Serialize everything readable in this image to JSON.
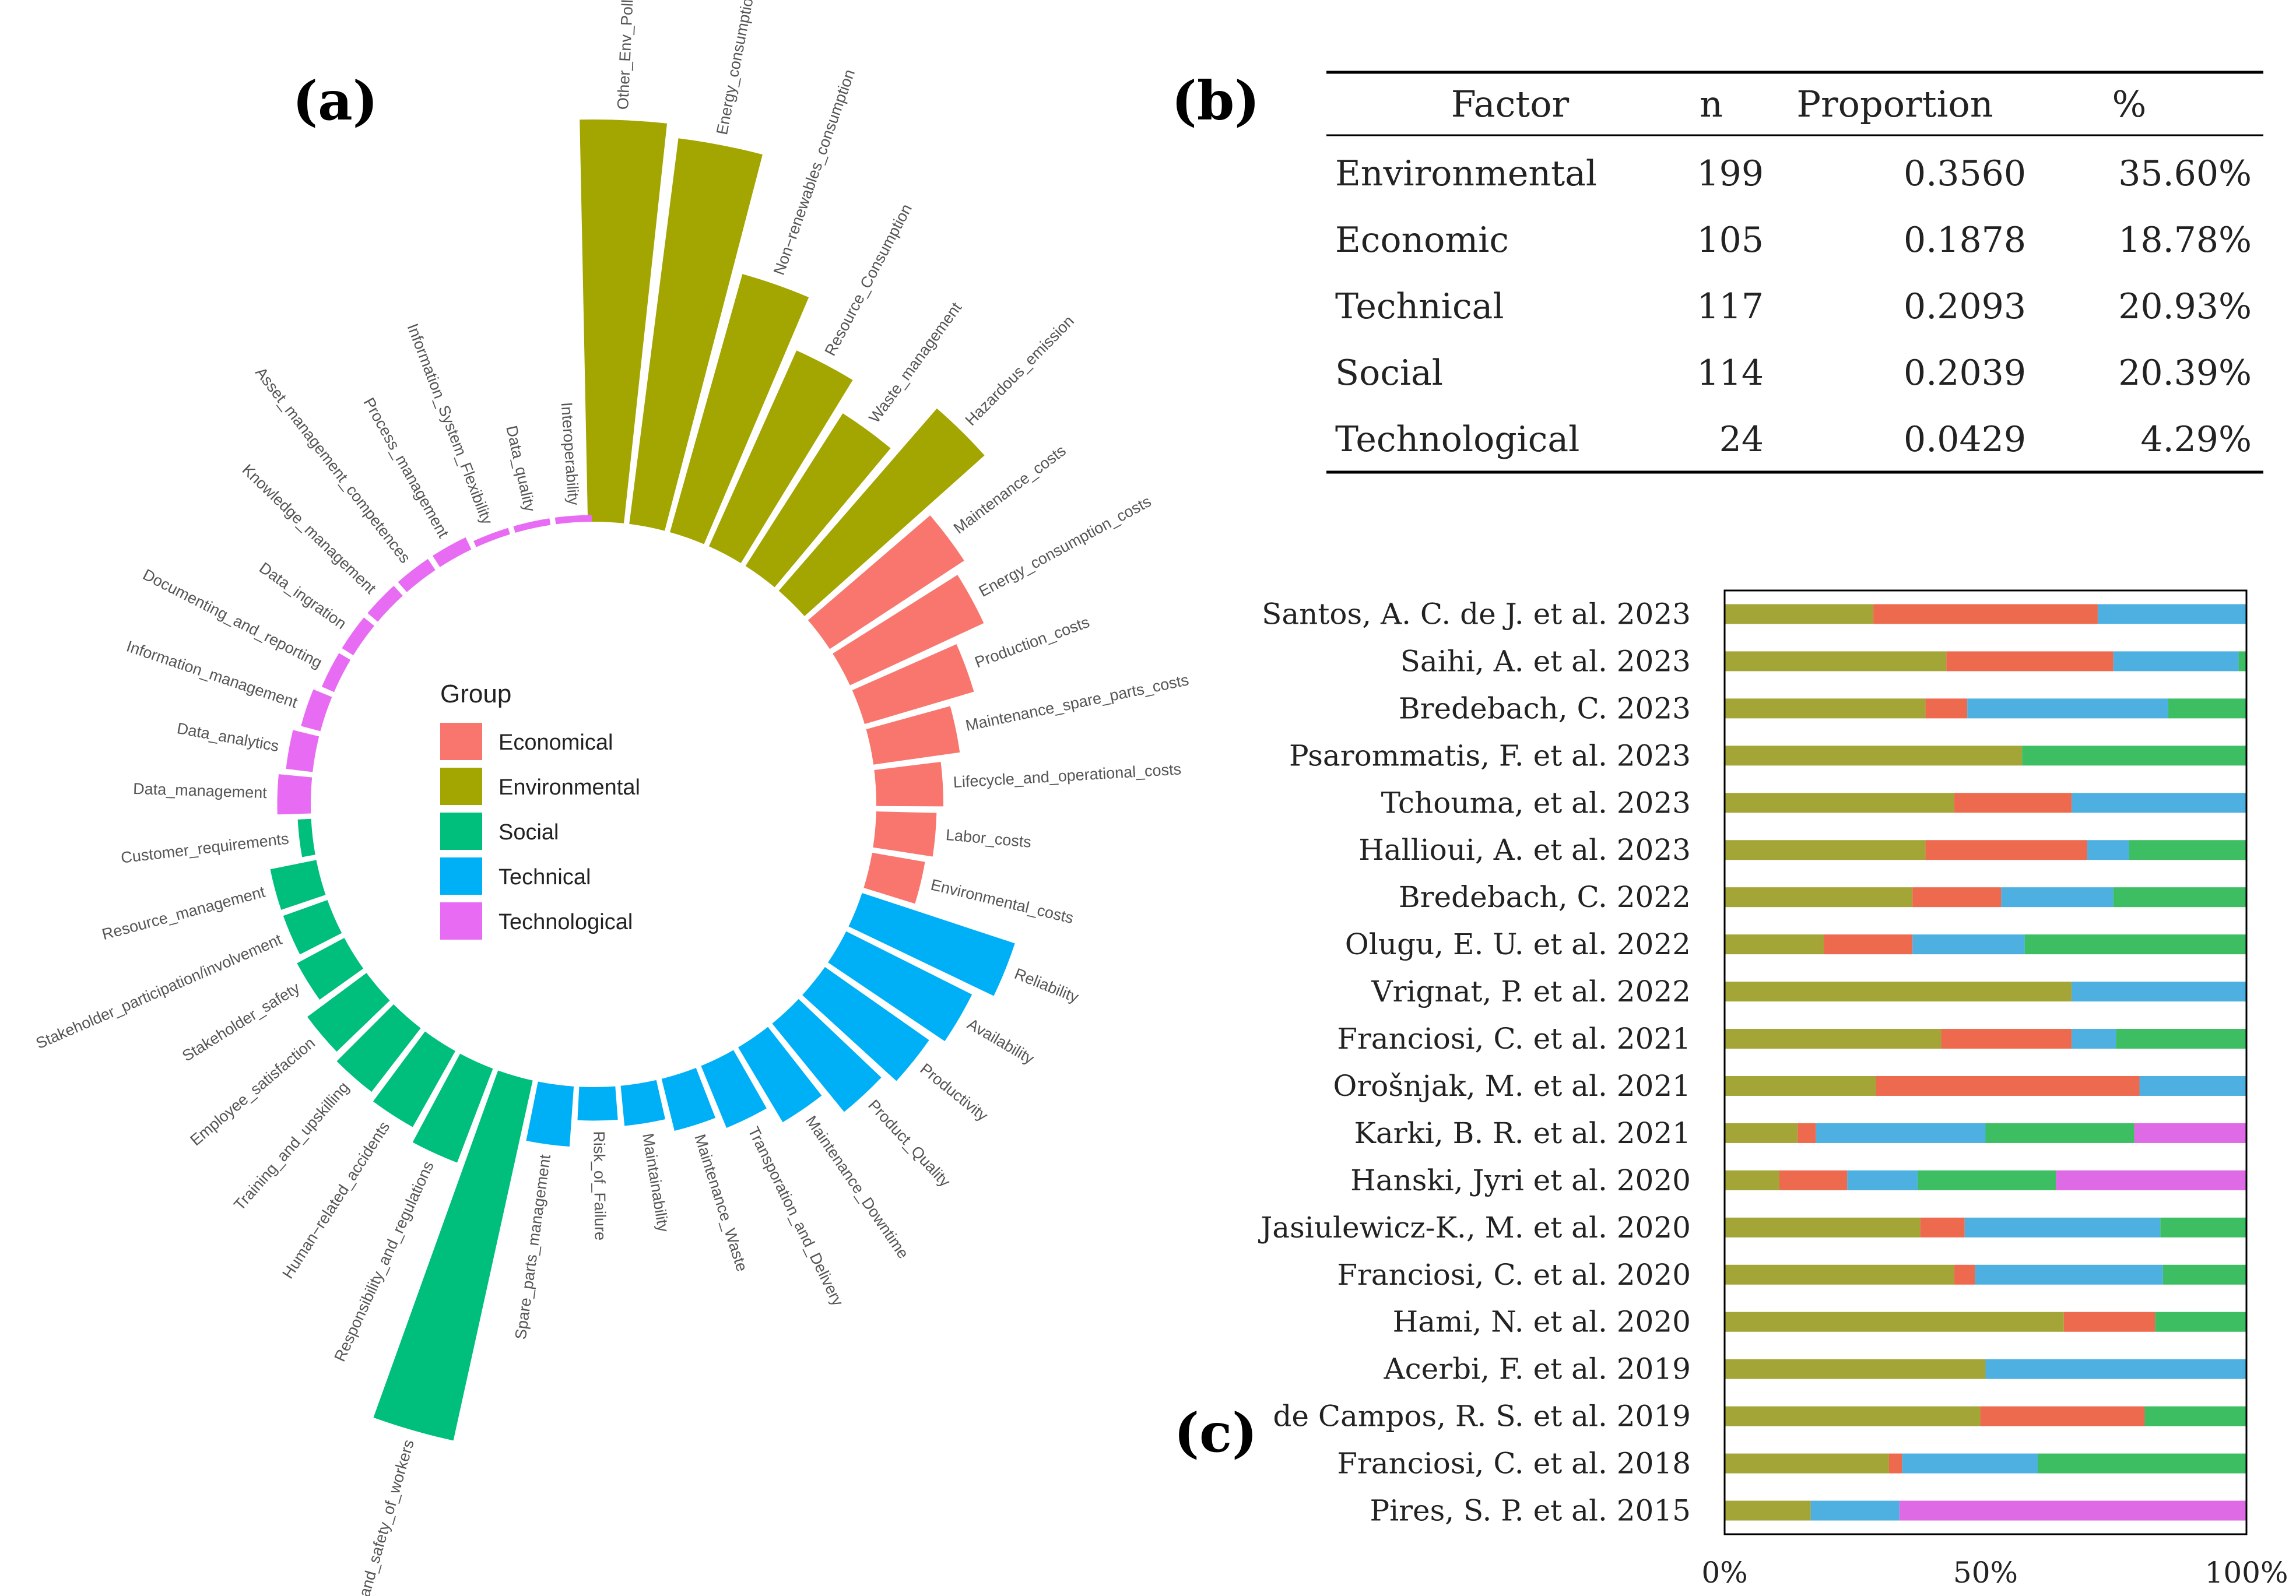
{
  "panel_labels": {
    "a": "(a)",
    "b": "(b)",
    "c": "(c)"
  },
  "chart_data": [
    {
      "type": "bar",
      "subtype": "circular",
      "panel": "(a)",
      "legend": {
        "title": "Group",
        "items": [
          {
            "name": "Economical",
            "color": "#F8766D"
          },
          {
            "name": "Environmental",
            "color": "#A3A500"
          },
          {
            "name": "Social",
            "color": "#00BF7D"
          },
          {
            "name": "Technical",
            "color": "#00B0F6"
          },
          {
            "name": "Technological",
            "color": "#E76BF3"
          }
        ]
      },
      "categories": [
        {
          "label": "Other_Env_Pollution",
          "group": "Environmental",
          "value": 60
        },
        {
          "label": "Energy_consumption",
          "group": "Environmental",
          "value": 58
        },
        {
          "label": "Non−renewables_consumption",
          "group": "Environmental",
          "value": 40
        },
        {
          "label": "Resource_Consumption",
          "group": "Environmental",
          "value": 32
        },
        {
          "label": "Waste_management",
          "group": "Environmental",
          "value": 27
        },
        {
          "label": "Hazardous_emission",
          "group": "Environmental",
          "value": 36
        },
        {
          "label": "Maintenance_costs",
          "group": "Economical",
          "value": 24
        },
        {
          "label": "Energy_consumption_costs",
          "group": "Economical",
          "value": 22
        },
        {
          "label": "Production_costs",
          "group": "Economical",
          "value": 17
        },
        {
          "label": "Maintenance_spare_parts_costs",
          "group": "Economical",
          "value": 13
        },
        {
          "label": "Lifecycle_and_operational_costs",
          "group": "Economical",
          "value": 10
        },
        {
          "label": "Labor_costs",
          "group": "Economical",
          "value": 9
        },
        {
          "label": "Environmental_costs",
          "group": "Economical",
          "value": 8
        },
        {
          "label": "Reliability",
          "group": "Technical",
          "value": 24
        },
        {
          "label": "Availability",
          "group": "Technical",
          "value": 21
        },
        {
          "label": "Productivity",
          "group": "Technical",
          "value": 19
        },
        {
          "label": "Product_Quality",
          "group": "Technical",
          "value": 17
        },
        {
          "label": "Maintenance_Downtime",
          "group": "Technical",
          "value": 13
        },
        {
          "label": "Transporation_and_Delivery",
          "group": "Technical",
          "value": 10
        },
        {
          "label": "Maintenance_Waste",
          "group": "Technical",
          "value": 8
        },
        {
          "label": "Maintainability",
          "group": "Technical",
          "value": 6
        },
        {
          "label": "Risk_of_Failure",
          "group": "Technical",
          "value": 5
        },
        {
          "label": "Spare_parts_management",
          "group": "Technical",
          "value": 9
        },
        {
          "label": "Health_and_safety_of_workers",
          "group": "Social",
          "value": 55
        },
        {
          "label": "Responsibility_and_regulations",
          "group": "Social",
          "value": 15
        },
        {
          "label": "Human−related_accidents",
          "group": "Social",
          "value": 13
        },
        {
          "label": "Training_and_upskilling",
          "group": "Social",
          "value": 12
        },
        {
          "label": "Employee_satisfaction",
          "group": "Social",
          "value": 11
        },
        {
          "label": "Stakeholder_safety",
          "group": "Social",
          "value": 8
        },
        {
          "label": "Stakeholder_participation/involvement",
          "group": "Social",
          "value": 7
        },
        {
          "label": "Resource_management",
          "group": "Social",
          "value": 7
        },
        {
          "label": "Customer_requirements",
          "group": "Social",
          "value": 2
        },
        {
          "label": "Data_management",
          "group": "Technological",
          "value": 5
        },
        {
          "label": "Data_analytics",
          "group": "Technological",
          "value": 4
        },
        {
          "label": "Information_management",
          "group": "Technological",
          "value": 3
        },
        {
          "label": "Documenting_and_reporting",
          "group": "Technological",
          "value": 2
        },
        {
          "label": "Data_ingration",
          "group": "Technological",
          "value": 2
        },
        {
          "label": "Knowledge_management",
          "group": "Technological",
          "value": 2
        },
        {
          "label": "Asset_management_competences",
          "group": "Technological",
          "value": 2
        },
        {
          "label": "Process_management",
          "group": "Technological",
          "value": 2
        },
        {
          "label": "Information_System_Flexibility",
          "group": "Technological",
          "value": 1
        },
        {
          "label": "Data_quality",
          "group": "Technological",
          "value": 1
        },
        {
          "label": "Interoperability",
          "group": "Technological",
          "value": 1
        }
      ]
    },
    {
      "type": "table",
      "panel": "(b)",
      "columns": [
        "Factor",
        "n",
        "Proportion",
        "%"
      ],
      "rows": [
        [
          "Environmental",
          "199",
          "0.3560",
          "35.60%"
        ],
        [
          "Economic",
          "105",
          "0.1878",
          "18.78%"
        ],
        [
          "Technical",
          "117",
          "0.2093",
          "20.93%"
        ],
        [
          "Social",
          "114",
          "0.2039",
          "20.39%"
        ],
        [
          "Technological",
          "24",
          "0.0429",
          "4.29%"
        ]
      ]
    },
    {
      "type": "bar",
      "subtype": "stacked-horizontal-percent",
      "panel": "(c)",
      "x_ticks": [
        "0%",
        "50%",
        "100%"
      ],
      "xlim": [
        0,
        100
      ],
      "series_order": [
        "Environmental",
        "Economical",
        "Technical",
        "Social",
        "Technological"
      ],
      "series_colors": {
        "Environmental": "#A3A537",
        "Economical": "#EE6A4F",
        "Technical": "#4DB0E0",
        "Social": "#3DBE63",
        "Technological": "#DE6AE6"
      },
      "categories": [
        "Santos, A. C. de J. et al. 2023",
        "Saihi, A. et al. 2023",
        "Bredebach, C. 2023",
        "Psarommatis, F. et al. 2023",
        "Tchouma, et al. 2023",
        "Hallioui, A. et al. 2023",
        "Bredebach, C. 2022",
        "Olugu, E. U. et al. 2022",
        "Vrignat, P. et al. 2022",
        "Franciosi, C. et al. 2021",
        "Orošnjak, M. et al. 2021",
        "Karki, B. R. et al. 2021",
        "Hanski, Jyri et al. 2020",
        "Jasiulewicz-K., M. et al. 2020",
        "Franciosi, C. et al. 2020",
        "Hami, N. et al. 2020",
        "Acerbi, F. et al. 2019",
        "de Campos, R. S. et al. 2019",
        "Franciosi, C. et al. 2018",
        "Pires, S. P. et al. 2015"
      ],
      "values": [
        [
          28.5,
          43,
          28.5,
          0,
          0
        ],
        [
          42.5,
          32,
          24,
          1.5,
          0
        ],
        [
          38.5,
          8,
          38.5,
          15,
          0
        ],
        [
          57,
          0,
          0,
          43,
          0
        ],
        [
          44,
          22.5,
          33.5,
          0,
          0
        ],
        [
          38.5,
          31,
          8,
          22.5,
          0
        ],
        [
          36,
          17,
          21.5,
          25.5,
          0
        ],
        [
          19,
          17,
          21.5,
          42.5,
          0
        ],
        [
          66.5,
          0,
          33.5,
          0,
          0
        ],
        [
          41.5,
          25,
          8.5,
          25,
          0
        ],
        [
          29,
          50.5,
          20.5,
          0,
          0
        ],
        [
          14,
          3.5,
          32.5,
          28.5,
          21.5
        ],
        [
          10.5,
          13,
          13.5,
          26.5,
          36.5
        ],
        [
          37.5,
          8.5,
          37.5,
          16.5,
          0
        ],
        [
          44,
          4,
          36,
          16,
          0
        ],
        [
          65,
          17.5,
          0,
          17.5,
          0
        ],
        [
          50,
          0,
          50,
          0,
          0
        ],
        [
          49,
          31.5,
          0,
          19.5,
          0
        ],
        [
          31.5,
          2.5,
          26,
          40,
          0
        ],
        [
          16.5,
          0,
          17,
          0,
          66.5
        ]
      ]
    }
  ]
}
